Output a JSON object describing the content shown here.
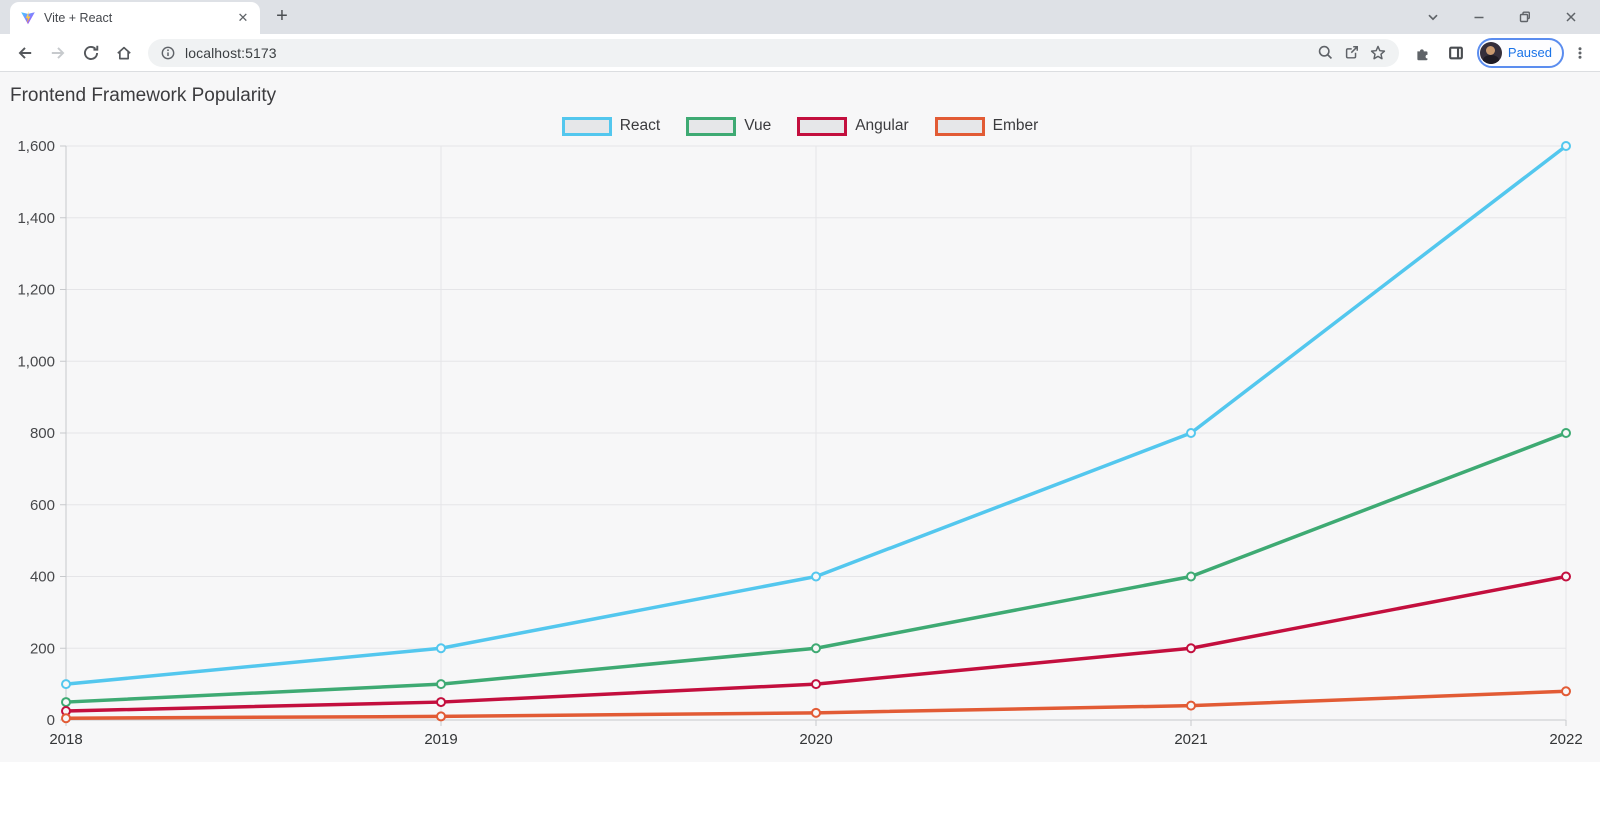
{
  "browser": {
    "tab_title": "Vite + React",
    "url": "localhost:5173",
    "profile_status": "Paused",
    "icons": {
      "new_tab": "+",
      "close_tab": "✕",
      "menu": "⋮"
    }
  },
  "page": {
    "title": "Frontend Framework Popularity"
  },
  "chart_data": {
    "type": "line",
    "title": "Frontend Framework Popularity",
    "x": [
      "2018",
      "2019",
      "2020",
      "2021",
      "2022"
    ],
    "series": [
      {
        "name": "React",
        "color": "#53c7ee",
        "values": [
          100,
          200,
          400,
          800,
          1600
        ]
      },
      {
        "name": "Vue",
        "color": "#3eaa73",
        "values": [
          50,
          100,
          200,
          400,
          800
        ]
      },
      {
        "name": "Angular",
        "color": "#c30f3e",
        "values": [
          25,
          50,
          100,
          200,
          400
        ]
      },
      {
        "name": "Ember",
        "color": "#e25b35",
        "values": [
          5,
          10,
          20,
          40,
          80
        ]
      }
    ],
    "xlabel": "",
    "ylabel": "",
    "ylim": [
      0,
      1600
    ],
    "ytick_step": 200,
    "grid": true,
    "legend_position": "top"
  }
}
